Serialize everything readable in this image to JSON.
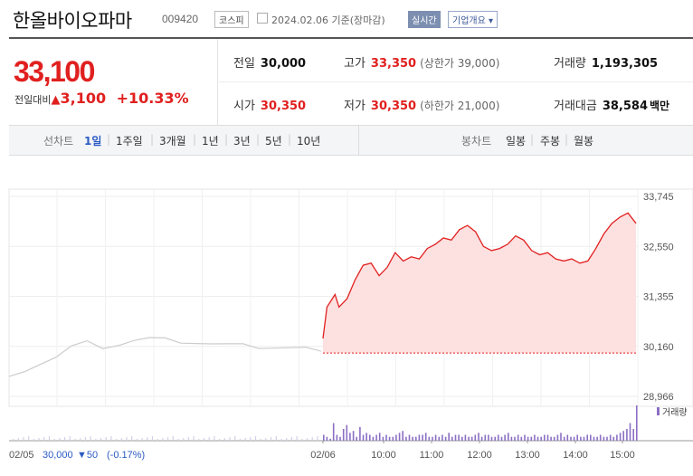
{
  "header": {
    "name": "한올바이오파마",
    "code": "009420",
    "market": "코스피",
    "date": "2024.02.06 기준(장마감)",
    "realtime": "실시간",
    "company_info": "기업개요 ▾"
  },
  "price": {
    "current": "33,100",
    "change_label": "전일대비",
    "change_arrow": "▲",
    "change": "3,100",
    "rate": "+10.33%"
  },
  "stats": {
    "prev_label": "전일",
    "prev": "30,000",
    "high_label": "고가",
    "high": "33,350",
    "upper_limit": "(상한가 39,000)",
    "volume_label": "거래량",
    "volume": "1,193,305",
    "open_label": "시가",
    "open": "30,350",
    "low_label": "저가",
    "low": "30,350",
    "lower_limit": "(하한가 21,000)",
    "amount_label": "거래대금",
    "amount": "38,584",
    "amount_unit": "백만"
  },
  "tabs": {
    "line_label": "선차트",
    "line_periods": [
      "1일",
      "1주일",
      "3개월",
      "1년",
      "3년",
      "5년",
      "10년"
    ],
    "selected_period": "1일",
    "candle_label": "봉차트",
    "candle_periods": [
      "일봉",
      "주봉",
      "월봉"
    ]
  },
  "colors": {
    "up": "#e0201f",
    "down": "#2b5bc4",
    "area_fill": "#fde0e0",
    "prev_line": "#cccccc",
    "volume": "#8b6fc4"
  },
  "chart_data": {
    "type": "area",
    "y_ticks": [
      "33,745",
      "32,550",
      "31,355",
      "30,160",
      "28,966"
    ],
    "ylim": [
      28966,
      33745
    ],
    "x_ticks": [
      "02/06",
      "10:00",
      "11:00",
      "12:00",
      "13:00",
      "14:00",
      "15:00"
    ],
    "prev_day_label": "02/05",
    "prev_day_close": "30,000",
    "prev_day_change_arrow": "▼",
    "prev_day_change": "50",
    "prev_day_rate": "(-0.17%)",
    "volume_legend": "거래량",
    "reference_line": 30000,
    "previous_day_series": {
      "x": [
        0,
        0.05,
        0.1,
        0.15,
        0.2,
        0.25,
        0.3,
        0.35,
        0.4,
        0.45,
        0.5,
        0.55,
        0.6,
        0.65,
        0.7,
        0.75,
        0.8,
        0.85,
        0.9,
        0.95,
        1.0
      ],
      "y": [
        29400,
        29600,
        29750,
        29900,
        30150,
        30250,
        30150,
        30200,
        30300,
        30350,
        30320,
        30280,
        30250,
        30220,
        30200,
        30180,
        30150,
        30140,
        30130,
        30120,
        30000
      ]
    },
    "intraday_series": {
      "time": [
        "09:00",
        "09:05",
        "09:10",
        "09:15",
        "09:20",
        "09:30",
        "09:40",
        "09:50",
        "10:00",
        "10:10",
        "10:20",
        "10:30",
        "10:40",
        "10:50",
        "11:00",
        "11:10",
        "11:20",
        "11:30",
        "11:40",
        "11:50",
        "12:00",
        "12:10",
        "12:20",
        "12:30",
        "12:40",
        "12:50",
        "13:00",
        "13:10",
        "13:20",
        "13:30",
        "13:40",
        "13:50",
        "14:00",
        "14:10",
        "14:20",
        "14:30",
        "14:40",
        "14:50",
        "15:00",
        "15:10",
        "15:20",
        "15:30"
      ],
      "y": [
        30350,
        31100,
        31250,
        31400,
        31100,
        31300,
        31750,
        32100,
        32150,
        31850,
        32050,
        32400,
        32200,
        32300,
        32250,
        32500,
        32600,
        32750,
        32700,
        32950,
        33050,
        32900,
        32550,
        32450,
        32500,
        32600,
        32800,
        32700,
        32450,
        32350,
        32400,
        32250,
        32200,
        32250,
        32150,
        32200,
        32500,
        32850,
        33100,
        33250,
        33350,
        33100
      ]
    },
    "volume": [
      3,
      2,
      1,
      9,
      3,
      2,
      6,
      8,
      4,
      5,
      2,
      7,
      3,
      4,
      3,
      2,
      3,
      4,
      2,
      3,
      2,
      2,
      3,
      4,
      5,
      2,
      3,
      2,
      2,
      3,
      3,
      4,
      2,
      2,
      3,
      2,
      3,
      2,
      4,
      2,
      3,
      3,
      2,
      3,
      2,
      2,
      3,
      4,
      2,
      3,
      3,
      2,
      2,
      3,
      2,
      3,
      4,
      2,
      2,
      3,
      2,
      3,
      2,
      2,
      3,
      2,
      2,
      3,
      3,
      2,
      2,
      3,
      4,
      2,
      3,
      2,
      2,
      3,
      2,
      2,
      3,
      3,
      2,
      2,
      3,
      2,
      2,
      3,
      2,
      3,
      4,
      5,
      6,
      9,
      6,
      18
    ]
  }
}
